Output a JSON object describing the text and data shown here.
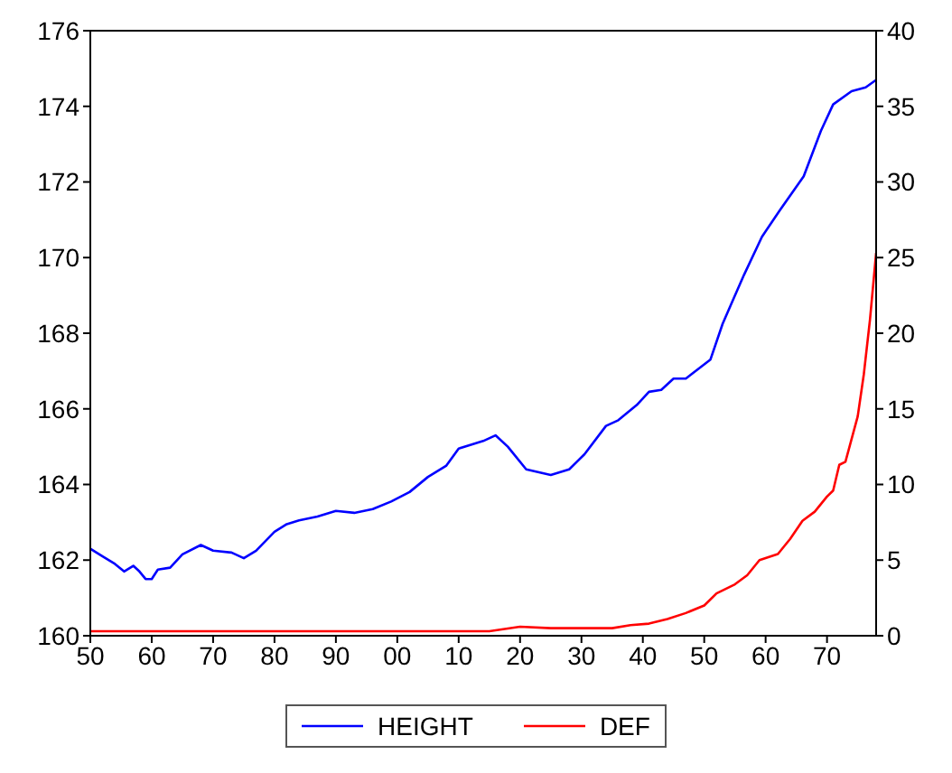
{
  "chart_data": {
    "type": "line",
    "xlim": [
      1850,
      1978
    ],
    "xticks": [
      {
        "value": 1850,
        "label": "50"
      },
      {
        "value": 1860,
        "label": "60"
      },
      {
        "value": 1870,
        "label": "70"
      },
      {
        "value": 1880,
        "label": "80"
      },
      {
        "value": 1890,
        "label": "90"
      },
      {
        "value": 1900,
        "label": "00"
      },
      {
        "value": 1910,
        "label": "10"
      },
      {
        "value": 1920,
        "label": "20"
      },
      {
        "value": 1930,
        "label": "30"
      },
      {
        "value": 1940,
        "label": "40"
      },
      {
        "value": 1950,
        "label": "50"
      },
      {
        "value": 1960,
        "label": "60"
      },
      {
        "value": 1970,
        "label": "70"
      }
    ],
    "ylim": [
      160,
      176
    ],
    "yticks": [
      160,
      162,
      164,
      166,
      168,
      170,
      172,
      174,
      176
    ],
    "y2lim": [
      0,
      40
    ],
    "y2ticks": [
      0,
      5,
      10,
      15,
      20,
      25,
      30,
      35,
      40
    ],
    "grid": false,
    "legend": "bottom",
    "marker": "none",
    "line_style": "solid",
    "series": [
      {
        "name": "HEIGHT",
        "color": "#0000ff",
        "x": [
          1850,
          1852,
          1854,
          1855.5,
          1857,
          1858,
          1859,
          1860,
          1861,
          1863,
          1865,
          1868,
          1870,
          1873,
          1875,
          1877,
          1880,
          1882,
          1884,
          1887,
          1890,
          1893,
          1896,
          1899,
          1902,
          1905,
          1908,
          1910,
          1912,
          1914,
          1916,
          1918,
          1921,
          1925,
          1928,
          1930.5,
          1934,
          1936,
          1939,
          1941,
          1943,
          1945,
          1947,
          1951,
          1953,
          1954.6,
          1956.5,
          1959.4,
          1962.3,
          1966.2,
          1969,
          1971,
          1974,
          1976.3,
          1978
        ],
        "values": [
          162.3,
          162.1,
          161.9,
          161.7,
          161.85,
          161.7,
          161.5,
          161.5,
          161.75,
          161.8,
          162.15,
          162.4,
          162.25,
          162.2,
          162.05,
          162.25,
          162.75,
          162.95,
          163.05,
          163.15,
          163.3,
          163.25,
          163.35,
          163.55,
          163.8,
          164.2,
          164.5,
          164.95,
          165.05,
          165.15,
          165.3,
          165.0,
          164.4,
          164.25,
          164.4,
          164.8,
          165.55,
          165.7,
          166.1,
          166.45,
          166.5,
          166.8,
          166.8,
          167.3,
          168.25,
          168.85,
          169.55,
          170.55,
          171.25,
          172.15,
          173.35,
          174.05,
          174.4,
          174.5,
          174.7
        ]
      },
      {
        "name": "DEF",
        "color": "#ff0000",
        "axis": "y2",
        "x": [
          1850,
          1880,
          1915,
          1920,
          1925,
          1930,
          1935,
          1938,
          1941,
          1944,
          1947,
          1950,
          1952,
          1955,
          1957,
          1959,
          1962,
          1964,
          1966,
          1968,
          1970,
          1971,
          1972,
          1973,
          1975,
          1976,
          1977,
          1978
        ],
        "values": [
          0.3,
          0.3,
          0.3,
          0.6,
          0.5,
          0.5,
          0.5,
          0.7,
          0.8,
          1.1,
          1.5,
          2.0,
          2.8,
          3.4,
          4.0,
          5.0,
          5.4,
          6.4,
          7.6,
          8.2,
          9.2,
          9.6,
          11.3,
          11.5,
          14.5,
          17.3,
          20.9,
          25.3
        ]
      }
    ]
  }
}
